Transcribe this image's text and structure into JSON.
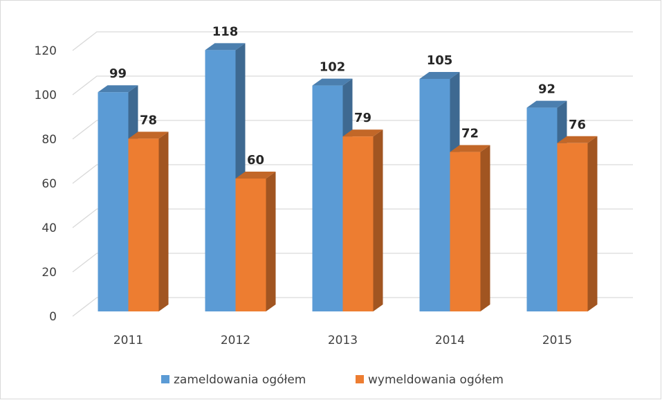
{
  "chart_data": {
    "type": "bar3d",
    "categories": [
      "2011",
      "2012",
      "2013",
      "2014",
      "2015"
    ],
    "series": [
      {
        "name": "zameldowania ogółem",
        "color": "#5b9bd5",
        "values": [
          99,
          118,
          102,
          105,
          92
        ]
      },
      {
        "name": "wymeldowania ogółem",
        "color": "#ed7d31",
        "values": [
          78,
          60,
          79,
          72,
          76
        ]
      }
    ],
    "ylim": [
      0,
      120
    ],
    "yticks": [
      0,
      20,
      40,
      60,
      80,
      100,
      120
    ],
    "grid": true,
    "legend": "bottom"
  }
}
